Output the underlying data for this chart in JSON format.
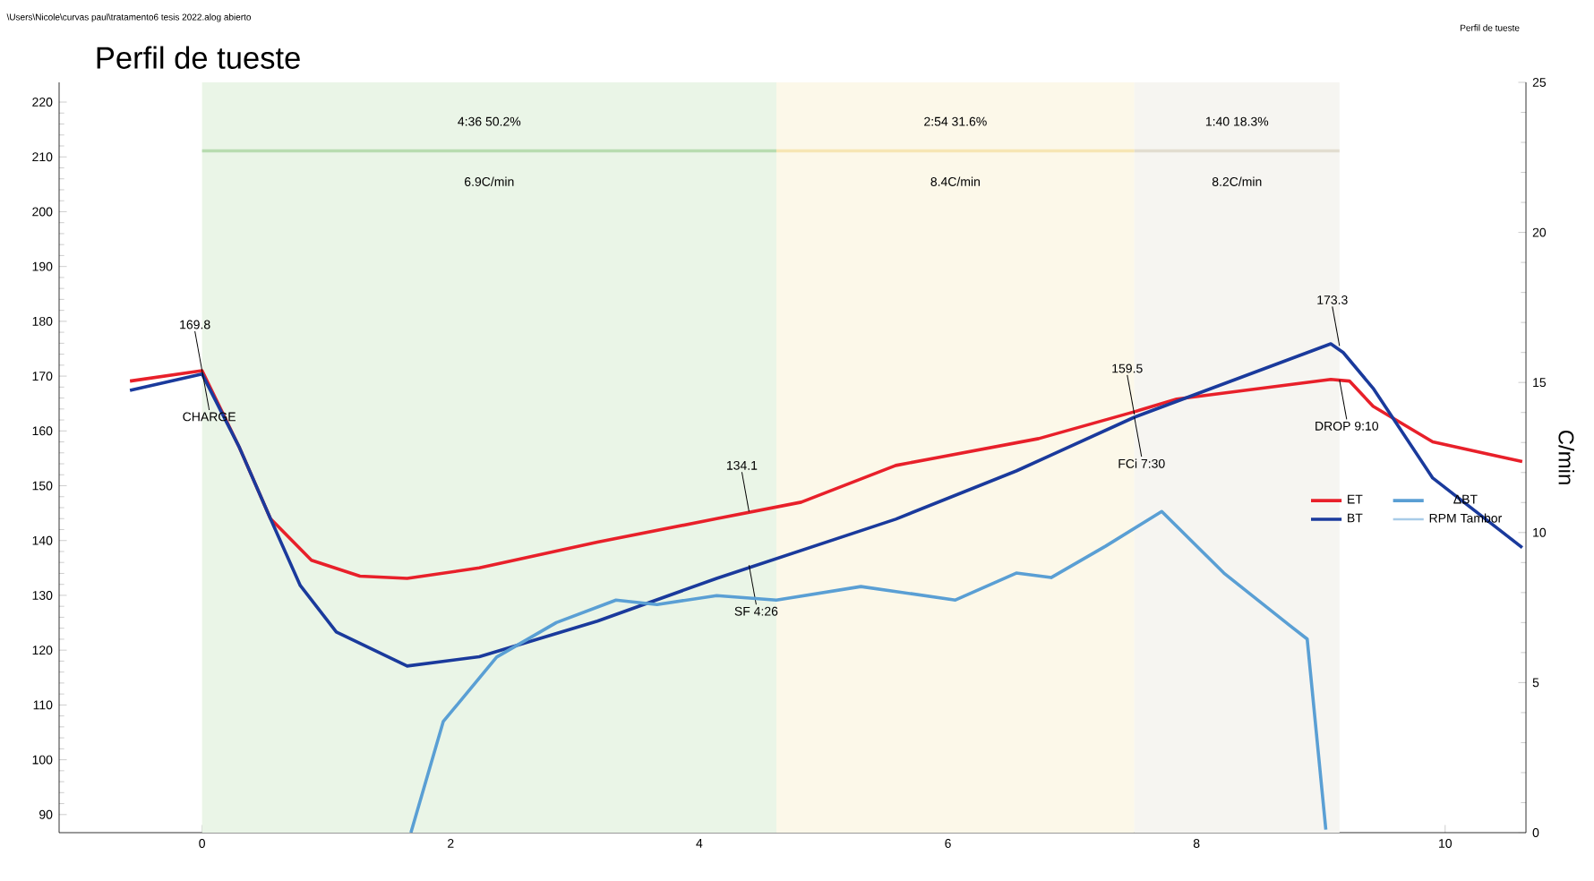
{
  "chart_data": {
    "type": "line",
    "title": "Perfil de tueste",
    "y2label": "C/min",
    "xlim": [
      -1.15,
      10.65
    ],
    "ylim": [
      86.7,
      223.6
    ],
    "y2lim": [
      0,
      25
    ],
    "xticks": [
      0,
      2,
      4,
      6,
      8,
      10
    ],
    "yticks": [
      90,
      100,
      110,
      120,
      130,
      140,
      150,
      160,
      170,
      180,
      190,
      200,
      210,
      220
    ],
    "y2ticks": [
      0,
      5,
      10,
      15,
      20,
      25
    ],
    "legend": "right",
    "grid": false,
    "marker": "none",
    "line_style": "solid",
    "series": [
      {
        "name": "ET",
        "color": "#e8202a",
        "x": [
          -0.58,
          0,
          0.3,
          0.55,
          0.88,
          1.27,
          1.65,
          2.23,
          3.18,
          4.14,
          4.82,
          5.58,
          6.73,
          7.5,
          7.84,
          9.08,
          9.23,
          9.42,
          9.9,
          10.62
        ],
        "values": [
          169.1,
          171.0,
          157,
          144,
          136.4,
          133.5,
          133.1,
          135,
          139.7,
          144,
          147,
          153.7,
          158.6,
          163.5,
          165.8,
          169.4,
          169.1,
          164.5,
          158,
          154.4
        ]
      },
      {
        "name": "BT",
        "color": "#1a3a9c",
        "x": [
          -0.58,
          0,
          0.3,
          0.55,
          0.79,
          1.08,
          1.65,
          2.23,
          3.18,
          4.14,
          5.58,
          6.55,
          7.5,
          9.08,
          9.18,
          9.42,
          9.9,
          10.62
        ],
        "values": [
          167.4,
          170.4,
          157,
          144,
          131.8,
          123.3,
          117.1,
          118.8,
          125.3,
          133.1,
          143.9,
          152.7,
          162.5,
          175.9,
          174.3,
          167.8,
          151.4,
          138.7
        ]
      },
      {
        "name": "ΔBT",
        "color": "#5a9fd4",
        "axis": "y2",
        "x": [
          1.68,
          1.94,
          2.37,
          2.85,
          3.33,
          3.66,
          4.14,
          4.62,
          5.3,
          6.06,
          6.55,
          6.83,
          7.27,
          7.72,
          8.22,
          8.75,
          8.89,
          9.04
        ],
        "values": [
          0,
          3.7,
          5.85,
          7.0,
          7.75,
          7.6,
          7.9,
          7.75,
          8.2,
          7.75,
          8.65,
          8.5,
          9.55,
          10.7,
          8.65,
          6.9,
          6.45,
          0.1
        ]
      },
      {
        "name": "RPM Tambor",
        "color": "#a8cce8",
        "axis": "y2"
      },
      {
        "color": "#b8dcb0",
        "x": [
          0,
          4.62
        ],
        "values": [
          211.1,
          211.1
        ]
      },
      {
        "color": "#f6e6b4",
        "x": [
          4.62,
          7.5
        ],
        "values": [
          211.1,
          211.1
        ]
      },
      {
        "color": "#e2ddd0",
        "x": [
          7.5,
          9.15
        ],
        "values": [
          211.1,
          211.1
        ]
      }
    ],
    "bands": [
      {
        "axis": "x",
        "from": 0,
        "to": 4.62,
        "label": "4:36  50.2%",
        "color": "#eaf5e7"
      },
      {
        "axis": "x",
        "from": 4.62,
        "to": 7.5,
        "label": "2:54  31.6%",
        "color": "#fcf8e9"
      },
      {
        "axis": "x",
        "from": 7.5,
        "to": 9.15,
        "label": "1:40  18.3%",
        "color": "#f6f5f1"
      }
    ],
    "annotations": [
      {
        "text": "169.8",
        "x": 0,
        "y": 171.0
      },
      {
        "text": "CHARGE",
        "x": 0,
        "y": 171.0
      },
      {
        "text": "134.1",
        "x": 4.4,
        "y": 145.3
      },
      {
        "text": "SF 4:26",
        "x": 4.4,
        "y": 135.5
      },
      {
        "text": "159.5",
        "x": 7.5,
        "y": 163
      },
      {
        "text": "FCi 7:30",
        "x": 7.5,
        "y": 162.5
      },
      {
        "text": "173.3",
        "x": 9.15,
        "y": 175.5
      },
      {
        "text": "DROP 9:10",
        "x": 9.15,
        "y": 169.3
      },
      "6.9C/min",
      "8.4C/min",
      "8.2C/min",
      "\\Users\\Nicole\\curvas paul\\tratamento6 tesis 2022.alog abierto",
      "Perfil de tueste"
    ]
  }
}
